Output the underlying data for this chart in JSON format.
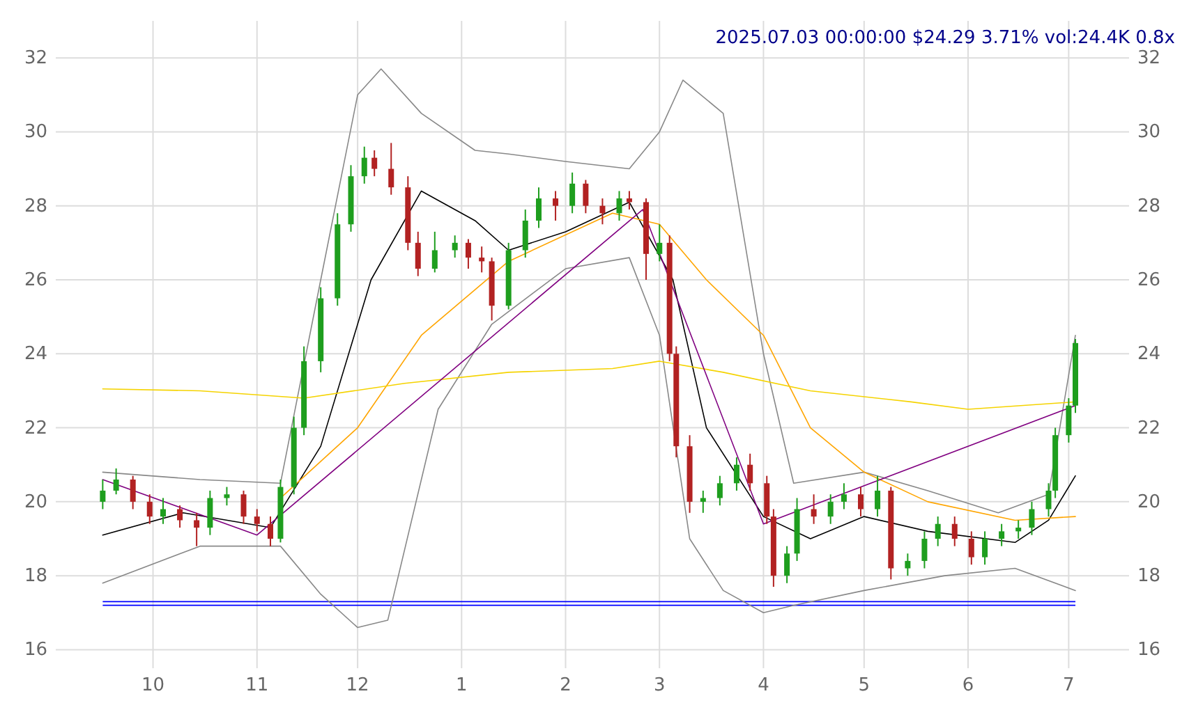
{
  "chart_data": {
    "type": "candlestick",
    "title": "2025.07.03 00:00:00 $24.29 3.71% vol:24.4K 0.8x",
    "x": [
      "2024-09-16",
      "2024-09-20",
      "2024-09-25",
      "2024-09-30",
      "2024-10-04",
      "2024-10-09",
      "2024-10-14",
      "2024-10-18",
      "2024-10-23",
      "2024-10-28",
      "2024-11-01",
      "2024-11-05",
      "2024-11-08",
      "2024-11-12",
      "2024-11-15",
      "2024-11-20",
      "2024-11-25",
      "2024-11-29",
      "2024-12-03",
      "2024-12-06",
      "2024-12-11",
      "2024-12-16",
      "2024-12-19",
      "2024-12-24",
      "2024-12-30",
      "2025-01-03",
      "2025-01-07",
      "2025-01-10",
      "2025-01-15",
      "2025-01-20",
      "2025-01-24",
      "2025-01-29",
      "2025-02-03",
      "2025-02-07",
      "2025-02-12",
      "2025-02-17",
      "2025-02-20",
      "2025-02-25",
      "2025-03-01",
      "2025-03-04",
      "2025-03-06",
      "2025-03-10",
      "2025-03-14",
      "2025-03-19",
      "2025-03-24",
      "2025-03-28",
      "2025-04-02",
      "2025-04-04",
      "2025-04-08",
      "2025-04-11",
      "2025-04-16",
      "2025-04-21",
      "2025-04-25",
      "2025-04-30",
      "2025-05-05",
      "2025-05-09",
      "2025-05-14",
      "2025-05-19",
      "2025-05-23",
      "2025-05-28",
      "2025-06-02",
      "2025-06-06",
      "2025-06-11",
      "2025-06-16",
      "2025-06-20",
      "2025-06-25",
      "2025-06-27",
      "2025-07-01",
      "2025-07-03"
    ],
    "ohlc": [
      [
        20.0,
        20.6,
        19.8,
        20.3
      ],
      [
        20.3,
        20.9,
        20.2,
        20.6
      ],
      [
        20.6,
        20.7,
        19.8,
        20.0
      ],
      [
        20.0,
        20.2,
        19.4,
        19.6
      ],
      [
        19.6,
        20.1,
        19.4,
        19.8
      ],
      [
        19.8,
        19.9,
        19.3,
        19.5
      ],
      [
        19.5,
        19.7,
        18.8,
        19.3
      ],
      [
        19.3,
        20.3,
        19.1,
        20.1
      ],
      [
        20.1,
        20.4,
        19.9,
        20.2
      ],
      [
        20.2,
        20.3,
        19.4,
        19.6
      ],
      [
        19.6,
        19.8,
        19.2,
        19.4
      ],
      [
        19.4,
        19.6,
        18.8,
        19.0
      ],
      [
        19.0,
        20.6,
        18.9,
        20.4
      ],
      [
        20.4,
        22.3,
        20.2,
        22.0
      ],
      [
        22.0,
        24.2,
        21.8,
        23.8
      ],
      [
        23.8,
        25.8,
        23.5,
        25.5
      ],
      [
        25.5,
        27.8,
        25.3,
        27.5
      ],
      [
        27.5,
        29.1,
        27.3,
        28.8
      ],
      [
        28.8,
        29.6,
        28.6,
        29.3
      ],
      [
        29.3,
        29.5,
        28.8,
        29.0
      ],
      [
        29.0,
        29.7,
        28.3,
        28.5
      ],
      [
        28.5,
        28.8,
        26.8,
        27.0
      ],
      [
        27.0,
        27.3,
        26.1,
        26.3
      ],
      [
        26.3,
        27.3,
        26.2,
        26.8
      ],
      [
        26.8,
        27.2,
        26.6,
        27.0
      ],
      [
        27.0,
        27.1,
        26.3,
        26.6
      ],
      [
        26.6,
        26.9,
        26.2,
        26.5
      ],
      [
        26.5,
        26.6,
        24.9,
        25.3
      ],
      [
        25.3,
        27.0,
        25.2,
        26.8
      ],
      [
        26.8,
        27.9,
        26.6,
        27.6
      ],
      [
        27.6,
        28.5,
        27.4,
        28.2
      ],
      [
        28.2,
        28.4,
        27.6,
        28.0
      ],
      [
        28.0,
        28.9,
        27.8,
        28.6
      ],
      [
        28.6,
        28.7,
        27.8,
        28.0
      ],
      [
        28.0,
        28.2,
        27.5,
        27.8
      ],
      [
        27.8,
        28.4,
        27.6,
        28.2
      ],
      [
        28.2,
        28.4,
        27.9,
        28.1
      ],
      [
        28.1,
        28.2,
        26.0,
        26.7
      ],
      [
        26.7,
        27.5,
        26.5,
        27.0
      ],
      [
        27.0,
        27.2,
        23.8,
        24.0
      ],
      [
        24.0,
        24.2,
        21.2,
        21.5
      ],
      [
        21.5,
        21.8,
        19.7,
        20.0
      ],
      [
        20.0,
        20.3,
        19.7,
        20.1
      ],
      [
        20.1,
        20.7,
        19.9,
        20.5
      ],
      [
        20.5,
        21.2,
        20.3,
        21.0
      ],
      [
        21.0,
        21.3,
        20.3,
        20.5
      ],
      [
        20.5,
        20.7,
        19.4,
        19.6
      ],
      [
        19.6,
        19.8,
        17.7,
        18.0
      ],
      [
        18.0,
        18.8,
        17.8,
        18.6
      ],
      [
        18.6,
        20.1,
        18.4,
        19.8
      ],
      [
        19.8,
        20.2,
        19.4,
        19.6
      ],
      [
        19.6,
        20.2,
        19.4,
        20.0
      ],
      [
        20.0,
        20.5,
        19.8,
        20.2
      ],
      [
        20.2,
        20.4,
        19.6,
        19.8
      ],
      [
        19.8,
        20.7,
        19.6,
        20.3
      ],
      [
        20.3,
        20.4,
        17.9,
        18.2
      ],
      [
        18.2,
        18.6,
        18.0,
        18.4
      ],
      [
        18.4,
        19.2,
        18.2,
        19.0
      ],
      [
        19.0,
        19.6,
        18.8,
        19.4
      ],
      [
        19.4,
        19.6,
        18.8,
        19.0
      ],
      [
        19.0,
        19.2,
        18.3,
        18.5
      ],
      [
        18.5,
        19.2,
        18.3,
        19.0
      ],
      [
        19.0,
        19.4,
        18.8,
        19.2
      ],
      [
        19.2,
        19.5,
        19.0,
        19.3
      ],
      [
        19.3,
        20.0,
        19.1,
        19.8
      ],
      [
        19.8,
        20.5,
        19.6,
        20.3
      ],
      [
        20.3,
        22.0,
        20.1,
        21.8
      ],
      [
        21.8,
        22.8,
        21.6,
        22.6
      ],
      [
        22.6,
        24.4,
        22.4,
        24.29
      ]
    ],
    "series": [
      {
        "type": "line",
        "color": "#888888",
        "x": [
          "2024-09-16",
          "2024-10-15",
          "2024-11-08",
          "2024-11-20",
          "2024-12-01",
          "2024-12-08",
          "2024-12-20",
          "2025-01-05",
          "2025-01-15",
          "2025-02-01",
          "2025-02-20",
          "2025-03-01",
          "2025-03-08",
          "2025-03-20",
          "2025-04-01",
          "2025-04-10",
          "2025-05-01",
          "2025-05-20",
          "2025-06-10",
          "2025-06-25",
          "2025-07-03"
        ],
        "values": [
          20.8,
          20.6,
          20.5,
          26,
          31,
          31.7,
          30.5,
          29.5,
          29.4,
          29.2,
          29.0,
          30,
          31.4,
          30.5,
          24,
          20.5,
          20.8,
          20.3,
          19.7,
          20.2,
          24.5
        ]
      },
      {
        "type": "line",
        "color": "#888888",
        "x": [
          "2024-09-16",
          "2024-10-15",
          "2024-11-08",
          "2024-11-20",
          "2024-12-01",
          "2024-12-10",
          "2024-12-25",
          "2025-01-10",
          "2025-02-01",
          "2025-02-20",
          "2025-03-01",
          "2025-03-10",
          "2025-03-20",
          "2025-04-01",
          "2025-04-10",
          "2025-05-01",
          "2025-05-25",
          "2025-06-15",
          "2025-07-03"
        ],
        "values": [
          17.8,
          18.8,
          18.8,
          17.5,
          16.6,
          16.8,
          22.5,
          24.8,
          26.3,
          26.6,
          24.5,
          19,
          17.6,
          17.0,
          17.2,
          17.6,
          18.0,
          18.2,
          17.6
        ]
      },
      {
        "type": "line",
        "color": "#000000",
        "x": [
          "2024-09-16",
          "2024-10-10",
          "2024-11-05",
          "2024-11-20",
          "2024-12-05",
          "2024-12-20",
          "2025-01-05",
          "2025-01-15",
          "2025-02-01",
          "2025-02-20",
          "2025-03-05",
          "2025-03-15",
          "2025-04-01",
          "2025-04-15",
          "2025-05-01",
          "2025-05-20",
          "2025-06-15",
          "2025-06-25",
          "2025-07-03"
        ],
        "values": [
          19.1,
          19.7,
          19.3,
          21.5,
          26,
          28.4,
          27.6,
          26.8,
          27.3,
          28.1,
          26,
          22,
          19.6,
          19.0,
          19.6,
          19.2,
          18.9,
          19.5,
          20.7
        ]
      },
      {
        "type": "line",
        "color": "#ffa500",
        "x": [
          "2024-11-08",
          "2024-12-01",
          "2024-12-20",
          "2025-01-15",
          "2025-02-15",
          "2025-03-01",
          "2025-03-15",
          "2025-04-01",
          "2025-04-15",
          "2025-05-01",
          "2025-05-20",
          "2025-06-15",
          "2025-07-03"
        ],
        "values": [
          20.1,
          22,
          24.5,
          26.5,
          27.8,
          27.5,
          26,
          24.5,
          22,
          20.8,
          20.0,
          19.5,
          19.6
        ]
      },
      {
        "type": "line",
        "color": "#f5d300",
        "x": [
          "2024-09-16",
          "2024-10-15",
          "2024-11-15",
          "2024-12-15",
          "2025-01-15",
          "2025-02-15",
          "2025-03-01",
          "2025-03-20",
          "2025-04-15",
          "2025-05-15",
          "2025-06-01",
          "2025-07-03"
        ],
        "values": [
          23.05,
          23.0,
          22.8,
          23.2,
          23.5,
          23.6,
          23.8,
          23.5,
          23.0,
          22.7,
          22.5,
          22.7
        ]
      },
      {
        "type": "line",
        "color": "#800080",
        "x": [
          "2024-09-16",
          "2024-11-01",
          "2025-02-24",
          "2025-04-01",
          "2025-07-03"
        ],
        "values": [
          20.6,
          19.1,
          27.9,
          19.4,
          22.6
        ]
      }
    ],
    "xlim": [
      "2024-09-02",
      "2025-07-19"
    ],
    "xticks": [
      {
        "value": "2024-10-01",
        "label": "10"
      },
      {
        "value": "2024-11-01",
        "label": "11"
      },
      {
        "value": "2024-12-01",
        "label": "12"
      },
      {
        "value": "2025-01-01",
        "label": "1"
      },
      {
        "value": "2025-02-01",
        "label": "2"
      },
      {
        "value": "2025-03-01",
        "label": "3"
      },
      {
        "value": "2025-04-01",
        "label": "4"
      },
      {
        "value": "2025-05-01",
        "label": "5"
      },
      {
        "value": "2025-06-01",
        "label": "6"
      },
      {
        "value": "2025-07-01",
        "label": "7"
      }
    ],
    "ylim": [
      15.5,
      33
    ],
    "yticks": [
      16,
      18,
      20,
      22,
      24,
      26,
      28,
      30,
      32
    ],
    "y2lim": [
      15.5,
      33
    ],
    "y2ticks": [
      16,
      18,
      20,
      22,
      24,
      26,
      28,
      30,
      32
    ],
    "ref_lines": [
      {
        "axis": "y",
        "value": 17.2,
        "color": "#0000ff"
      },
      {
        "axis": "y",
        "value": 17.3,
        "color": "#0000ff"
      }
    ],
    "grid": true
  }
}
